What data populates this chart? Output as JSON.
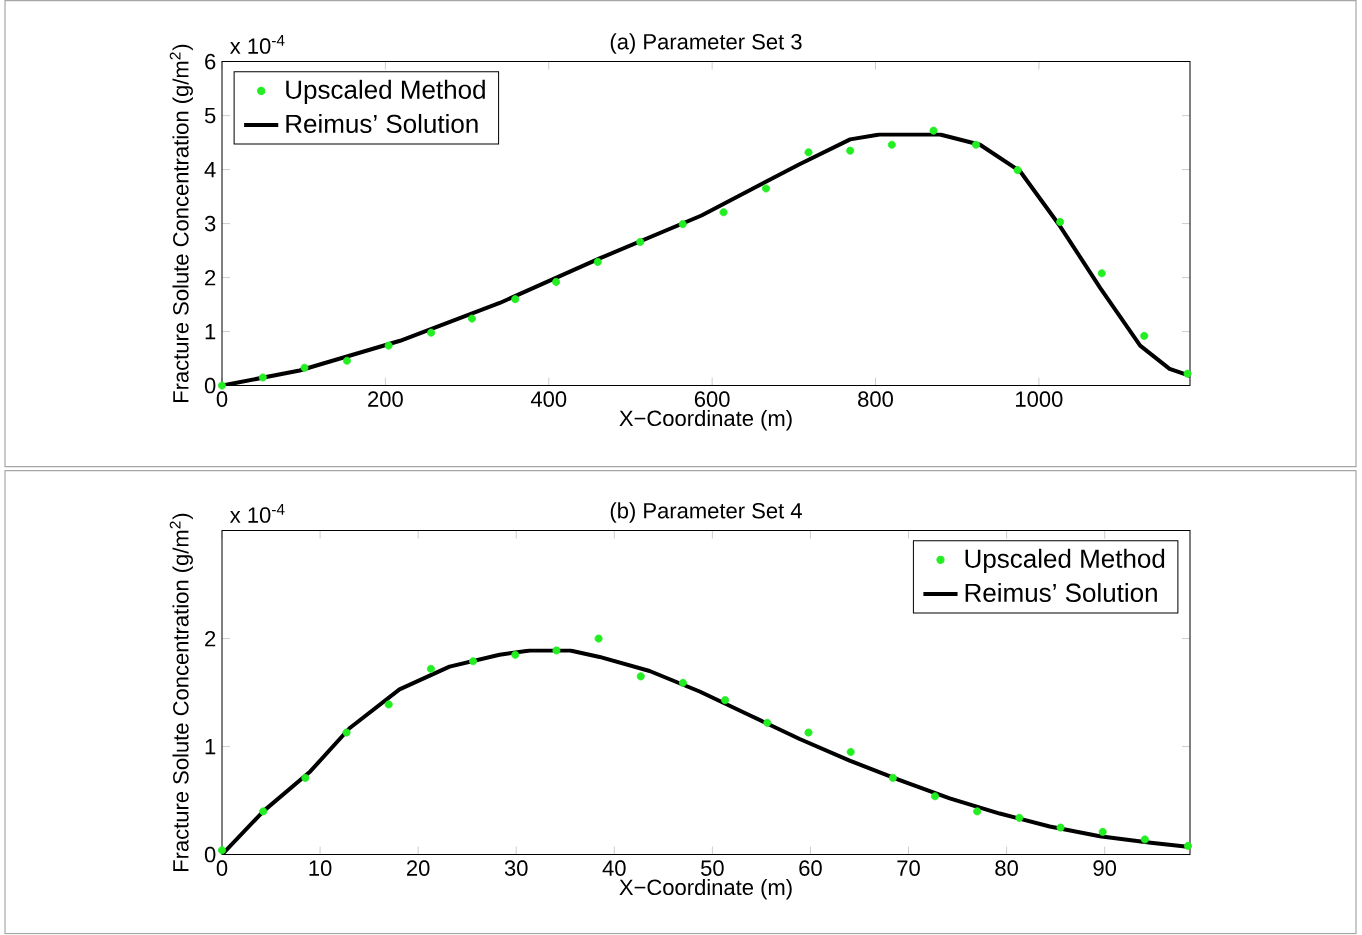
{
  "chart_data": [
    {
      "type": "line",
      "title": "(a) Parameter Set 3",
      "xlabel": "X−Coordinate (m)",
      "ylabel": "Fracture Solute Concentration (g/m$^{2}$)",
      "annotations": [
        "x 10$^{-4}$"
      ],
      "xlim": [
        0,
        1185
      ],
      "ylim": [
        0,
        6
      ],
      "xticks": [
        0,
        200,
        400,
        600,
        800,
        1000
      ],
      "yticks": [
        0,
        1,
        2,
        3,
        4,
        5,
        6
      ],
      "legend": "top left",
      "series": [
        {
          "name": "Upscaled Method",
          "type": "scatter",
          "marker": "circle",
          "color": "#22ee22",
          "x": [
            0,
            50,
            101,
            153,
            204,
            256,
            306,
            359,
            409,
            460,
            512,
            564,
            614,
            666,
            718,
            769,
            820,
            871,
            923,
            974,
            1026,
            1077,
            1129,
            1182
          ],
          "values": [
            0,
            0.15,
            0.33,
            0.46,
            0.74,
            0.98,
            1.24,
            1.6,
            1.92,
            2.29,
            2.66,
            2.99,
            3.21,
            3.65,
            4.32,
            4.35,
            4.46,
            4.72,
            4.46,
            3.99,
            3.03,
            2.08,
            0.92,
            0.22
          ]
        },
        {
          "name": "Reimus’ Solution",
          "marker": "none",
          "color": "#000000",
          "x": [
            0,
            95,
            218,
            340,
            463,
            587,
            707,
            769,
            805,
            879,
            928,
            977,
            1026,
            1075,
            1124,
            1160,
            1185
          ],
          "values": [
            0,
            0.28,
            0.83,
            1.53,
            2.36,
            3.15,
            4.1,
            4.56,
            4.65,
            4.65,
            4.46,
            3.97,
            2.95,
            1.81,
            0.74,
            0.31,
            0.18
          ]
        }
      ]
    },
    {
      "type": "line",
      "title": "(b) Parameter Set 4",
      "xlabel": "X−Coordinate (m)",
      "ylabel": "Fracture Solute Concentration (g/m$^{2}$)",
      "annotations": [
        "x 10$^{-4}$"
      ],
      "xlim": [
        0,
        98.7
      ],
      "ylim": [
        0,
        3
      ],
      "xticks": [
        0,
        10,
        20,
        30,
        40,
        50,
        60,
        70,
        80,
        90
      ],
      "yticks": [
        0,
        1,
        2
      ],
      "legend": "top right",
      "series": [
        {
          "name": "Upscaled Method",
          "type": "scatter",
          "marker": "circle",
          "color": "#22ee22",
          "x": [
            0,
            4.2,
            8.5,
            12.7,
            17,
            21.3,
            25.6,
            29.9,
            34.1,
            38.4,
            42.7,
            47,
            51.3,
            55.6,
            59.8,
            64.1,
            68.4,
            72.7,
            77,
            81.3,
            85.5,
            89.8,
            94.1,
            98.5
          ],
          "values": [
            0.04,
            0.4,
            0.71,
            1.13,
            1.39,
            1.72,
            1.79,
            1.85,
            1.89,
            2.0,
            1.65,
            1.59,
            1.43,
            1.22,
            1.13,
            0.95,
            0.71,
            0.54,
            0.4,
            0.34,
            0.25,
            0.21,
            0.14,
            0.08
          ]
        },
        {
          "name": "Reimus’ Solution",
          "marker": "none",
          "color": "#000000",
          "x": [
            0,
            4.2,
            9,
            13,
            18.1,
            23.2,
            28.3,
            31.4,
            35.5,
            38.5,
            43.6,
            48.7,
            53.8,
            58.9,
            64,
            69.1,
            74.2,
            79.3,
            84.4,
            89.5,
            94.7,
            98.7
          ],
          "values": [
            0,
            0.4,
            0.77,
            1.17,
            1.53,
            1.74,
            1.85,
            1.89,
            1.89,
            1.83,
            1.7,
            1.51,
            1.29,
            1.07,
            0.87,
            0.69,
            0.52,
            0.38,
            0.26,
            0.17,
            0.11,
            0.07
          ]
        }
      ]
    }
  ]
}
